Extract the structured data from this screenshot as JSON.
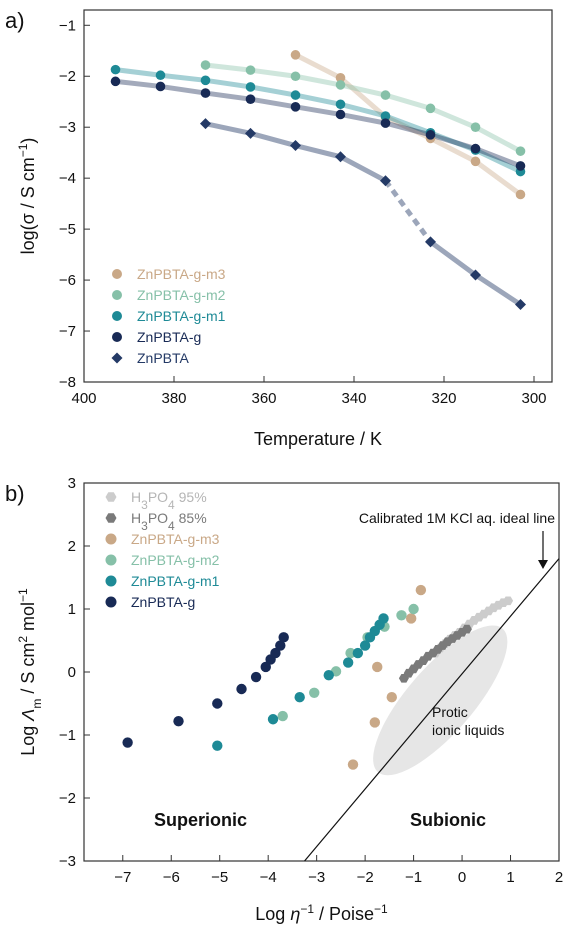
{
  "panels": {
    "a": "a)",
    "b": "b)"
  },
  "colors": {
    "m3": "#c9a887",
    "m2": "#86c0a8",
    "m1": "#1e8a96",
    "g": "#182a55",
    "zn": "#243a66",
    "h3po4_95": "#cccccc",
    "h3po4_85": "#7a7a7a",
    "ellipse": "#e6e6e6"
  },
  "chart_data": [
    {
      "id": "a",
      "type": "line",
      "xlabel": "Temperature / K",
      "ylabel": "log(σ / S cm⁻¹)",
      "xlim": [
        400,
        296
      ],
      "ylim": [
        -8,
        -0.7
      ],
      "x_reversed": true,
      "xticks": [
        400,
        380,
        360,
        340,
        320,
        300
      ],
      "yticks": [
        -8,
        -7,
        -6,
        -5,
        -4,
        -3,
        -2,
        -1
      ],
      "legend": "lower-left",
      "series": [
        {
          "key": "m3",
          "name": "ZnPBTA-g-m3",
          "marker": "circle",
          "x": [
            353,
            343,
            333,
            323,
            313,
            303
          ],
          "y": [
            -1.58,
            -2.03,
            -2.8,
            -3.22,
            -3.67,
            -4.32
          ]
        },
        {
          "key": "m2",
          "name": "ZnPBTA-g-m2",
          "marker": "circle",
          "x": [
            373,
            363,
            353,
            343,
            333,
            323,
            313,
            303
          ],
          "y": [
            -1.78,
            -1.88,
            -2.0,
            -2.17,
            -2.37,
            -2.63,
            -3.0,
            -3.47
          ]
        },
        {
          "key": "m1",
          "name": "ZnPBTA-g-m1",
          "marker": "circle",
          "x": [
            393,
            383,
            373,
            363,
            353,
            343,
            333,
            323,
            313,
            303
          ],
          "y": [
            -1.87,
            -1.98,
            -2.08,
            -2.21,
            -2.37,
            -2.55,
            -2.78,
            -3.11,
            -3.45,
            -3.87
          ]
        },
        {
          "key": "g",
          "name": "ZnPBTA-g",
          "marker": "circle",
          "x": [
            393,
            383,
            373,
            363,
            353,
            343,
            333,
            323,
            313,
            303
          ],
          "y": [
            -2.1,
            -2.2,
            -2.33,
            -2.45,
            -2.6,
            -2.75,
            -2.92,
            -3.15,
            -3.42,
            -3.76
          ]
        },
        {
          "key": "zn",
          "name": "ZnPBTA",
          "marker": "diamond",
          "x": [
            373,
            363,
            353,
            343,
            333,
            323,
            313,
            303
          ],
          "y": [
            -2.93,
            -3.12,
            -3.36,
            -3.58,
            -4.05,
            -5.25,
            -5.9,
            -6.48
          ],
          "dashed_segment": [
            4,
            5
          ]
        }
      ]
    },
    {
      "id": "b",
      "type": "scatter",
      "xlabel": "Log η⁻¹ / Poise⁻¹",
      "ylabel": "Log Λm / S cm² mol⁻¹",
      "xlim": [
        -7.8,
        2
      ],
      "ylim": [
        -3,
        3
      ],
      "xticks": [
        -7,
        -6,
        -5,
        -4,
        -3,
        -2,
        -1,
        0,
        1,
        2
      ],
      "yticks": [
        -3,
        -2,
        -1,
        0,
        1,
        2,
        3
      ],
      "legend": "top-left",
      "ideal_line": {
        "label": "Calibrated 1M KCl aq. ideal line",
        "x": [
          -3.25,
          2.0
        ],
        "y": [
          -3.0,
          1.8
        ]
      },
      "ellipse_label": [
        "Protic",
        "ionic liquids"
      ],
      "regions": {
        "left": "Superionic",
        "right": "Subionic"
      },
      "series": [
        {
          "key": "h3po4_95",
          "name": "H₃PO₄ 95%",
          "marker": "hexagon",
          "x": [
            -0.55,
            -0.45,
            -0.35,
            -0.25,
            -0.15,
            -0.05,
            0.05,
            0.15,
            0.25,
            0.35,
            0.45,
            0.55,
            0.65,
            0.75,
            0.85,
            0.95
          ],
          "y": [
            0.3,
            0.38,
            0.45,
            0.52,
            0.58,
            0.63,
            0.7,
            0.76,
            0.82,
            0.87,
            0.92,
            0.97,
            1.02,
            1.06,
            1.1,
            1.13
          ]
        },
        {
          "key": "h3po4_85",
          "name": "H₃PO₄ 85%",
          "marker": "hexagon",
          "x": [
            -1.2,
            -1.1,
            -1.0,
            -0.9,
            -0.8,
            -0.7,
            -0.6,
            -0.5,
            -0.4,
            -0.3,
            -0.2,
            -0.1,
            0.0,
            0.1
          ],
          "y": [
            -0.1,
            -0.02,
            0.05,
            0.12,
            0.18,
            0.25,
            0.3,
            0.36,
            0.42,
            0.48,
            0.53,
            0.58,
            0.63,
            0.68
          ]
        },
        {
          "key": "m3",
          "name": "ZnPBTA-g-m3",
          "marker": "circle",
          "x": [
            -2.25,
            -1.8,
            -1.45,
            -1.75,
            -1.05,
            -0.85
          ],
          "y": [
            -1.47,
            -0.8,
            -0.4,
            0.08,
            0.85,
            1.3
          ]
        },
        {
          "key": "m2",
          "name": "ZnPBTA-g-m2",
          "marker": "circle",
          "x": [
            -3.7,
            -3.05,
            -2.6,
            -2.3,
            -1.95,
            -1.6,
            -1.25,
            -1.0
          ],
          "y": [
            -0.7,
            -0.33,
            0.01,
            0.3,
            0.55,
            0.72,
            0.9,
            1.0
          ]
        },
        {
          "key": "m1",
          "name": "ZnPBTA-g-m1",
          "marker": "circle",
          "x": [
            -5.05,
            -3.9,
            -3.35,
            -2.75,
            -2.35,
            -2.15,
            -2.0,
            -1.9,
            -1.8,
            -1.7,
            -1.62
          ],
          "y": [
            -1.17,
            -0.75,
            -0.4,
            -0.05,
            0.15,
            0.3,
            0.42,
            0.55,
            0.65,
            0.75,
            0.85
          ]
        },
        {
          "key": "g",
          "name": "ZnPBTA-g",
          "marker": "circle",
          "x": [
            -6.9,
            -5.85,
            -5.05,
            -4.55,
            -4.25,
            -4.05,
            -3.95,
            -3.85,
            -3.75,
            -3.68
          ],
          "y": [
            -1.12,
            -0.78,
            -0.5,
            -0.27,
            -0.08,
            0.08,
            0.2,
            0.3,
            0.42,
            0.55
          ]
        }
      ]
    }
  ]
}
